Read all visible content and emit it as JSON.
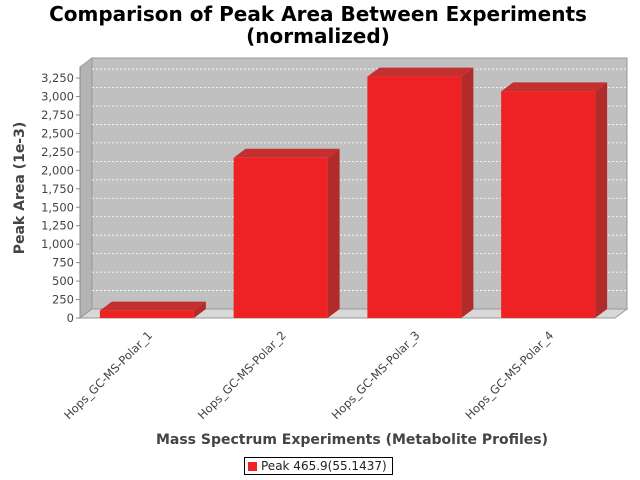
{
  "chart_data": {
    "type": "bar",
    "title": "Comparison of Peak Area Between Experiments",
    "subtitle": "(normalized)",
    "xlabel": "Mass Spectrum Experiments (Metabolite Profiles)",
    "ylabel": "Peak Area (1e-3)",
    "categories": [
      "Hops_GC-MS-Polar_1",
      "Hops_GC-MS-Polar_2",
      "Hops_GC-MS-Polar_3",
      "Hops_GC-MS-Polar_4"
    ],
    "series": [
      {
        "name": "Peak 465.9(55.1437)",
        "values": [
          100,
          2170,
          3270,
          3070
        ],
        "color": "#ee2222"
      }
    ],
    "ylim": [
      0,
      3400
    ],
    "yticks": [
      0,
      250,
      500,
      750,
      1000,
      1250,
      1500,
      1750,
      2000,
      2250,
      2500,
      2750,
      3000,
      3250
    ],
    "ytick_labels": [
      "0",
      "250",
      "500",
      "750",
      "1,000",
      "1,250",
      "1,500",
      "1,750",
      "2,000",
      "2,250",
      "2,500",
      "2,750",
      "3,000",
      "3,250"
    ],
    "grid": true,
    "legend_position": "bottom-center",
    "plot_background": "#c0c0c0"
  },
  "legend": {
    "label": "Peak 465.9(55.1437)"
  }
}
